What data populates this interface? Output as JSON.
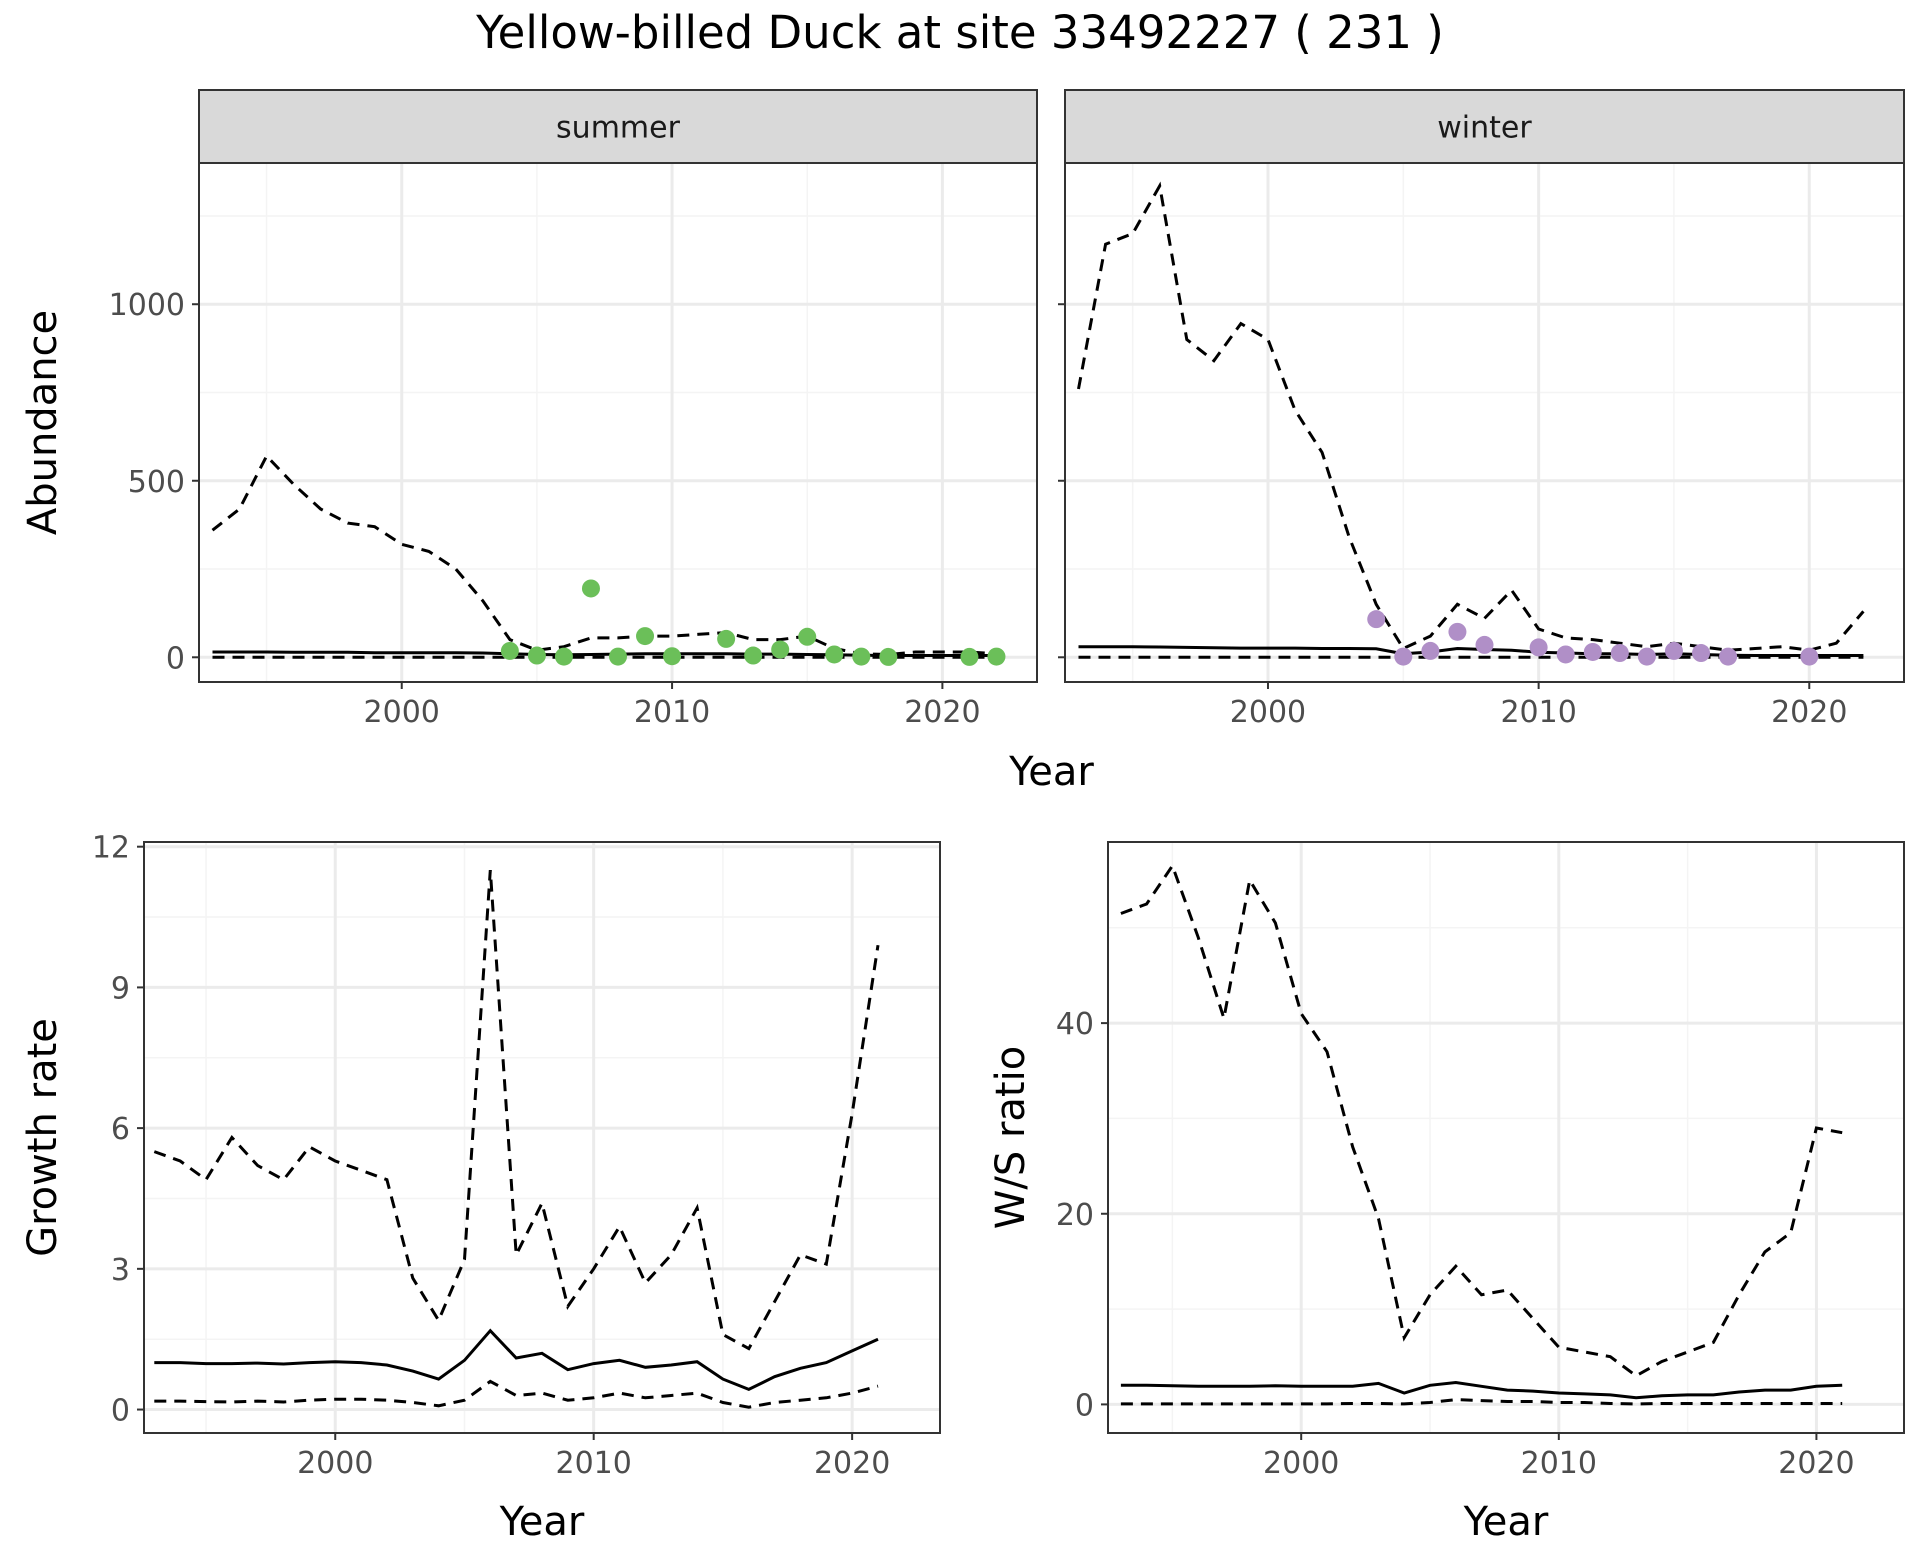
{
  "title": "Yellow-billed Duck at site 33492227 ( 231 )",
  "colors": {
    "summer_points": "#6bbf59",
    "winter_points": "#b08fc7",
    "line": "#000000",
    "grid_major": "#ebebeb",
    "grid_minor": "#f4f4f4",
    "strip_bg": "#d9d9d9",
    "panel_border": "#333333"
  },
  "chart_data": [
    {
      "type": "line",
      "facet": "summer",
      "xlabel": "Year",
      "ylabel": "Abundance",
      "xlim": [
        1992.5,
        2023.5
      ],
      "ylim": [
        -70,
        1400
      ],
      "xticks": [
        2000,
        2010,
        2020
      ],
      "yticks": [
        0,
        500,
        1000
      ],
      "grid": true,
      "years": [
        1993,
        1994,
        1995,
        1996,
        1997,
        1998,
        1999,
        2000,
        2001,
        2002,
        2003,
        2004,
        2005,
        2006,
        2007,
        2008,
        2009,
        2010,
        2011,
        2012,
        2013,
        2014,
        2015,
        2016,
        2017,
        2018,
        2019,
        2020,
        2021,
        2022
      ],
      "mean": [
        15,
        15,
        15,
        14,
        14,
        14,
        13,
        13,
        13,
        13,
        12,
        10,
        8,
        7,
        8,
        9,
        10,
        10,
        10,
        10,
        9,
        9,
        8,
        7,
        6,
        5,
        5,
        5,
        5,
        5
      ],
      "upper": [
        360,
        420,
        570,
        490,
        420,
        380,
        370,
        320,
        300,
        250,
        160,
        50,
        20,
        30,
        55,
        55,
        60,
        60,
        65,
        70,
        50,
        50,
        60,
        25,
        10,
        8,
        15,
        15,
        15,
        10
      ],
      "lower": [
        0,
        0,
        0,
        0,
        0,
        0,
        0,
        0,
        0,
        0,
        0,
        0,
        0,
        0,
        0,
        0,
        0,
        0,
        0,
        0,
        0,
        0,
        0,
        0,
        0,
        0,
        0,
        0,
        0,
        0
      ],
      "observed": [
        {
          "x": 2004,
          "y": 18
        },
        {
          "x": 2005,
          "y": 5
        },
        {
          "x": 2006,
          "y": 2
        },
        {
          "x": 2007,
          "y": 195
        },
        {
          "x": 2008,
          "y": 2
        },
        {
          "x": 2009,
          "y": 60
        },
        {
          "x": 2010,
          "y": 3
        },
        {
          "x": 2012,
          "y": 52
        },
        {
          "x": 2013,
          "y": 5
        },
        {
          "x": 2014,
          "y": 22
        },
        {
          "x": 2015,
          "y": 58
        },
        {
          "x": 2016,
          "y": 8
        },
        {
          "x": 2017,
          "y": 2
        },
        {
          "x": 2018,
          "y": 1
        },
        {
          "x": 2021,
          "y": 1
        },
        {
          "x": 2022,
          "y": 2
        }
      ]
    },
    {
      "type": "line",
      "facet": "winter",
      "xlabel": "Year",
      "ylabel": "Abundance",
      "xlim": [
        1992.5,
        2023.5
      ],
      "ylim": [
        -70,
        1400
      ],
      "xticks": [
        2000,
        2010,
        2020
      ],
      "yticks": [
        0,
        500,
        1000
      ],
      "grid": true,
      "years": [
        1993,
        1994,
        1995,
        1996,
        1997,
        1998,
        1999,
        2000,
        2001,
        2002,
        2003,
        2004,
        2005,
        2006,
        2007,
        2008,
        2009,
        2010,
        2011,
        2012,
        2013,
        2014,
        2015,
        2016,
        2017,
        2018,
        2019,
        2020,
        2021,
        2022
      ],
      "mean": [
        30,
        30,
        30,
        29,
        28,
        27,
        26,
        26,
        26,
        25,
        25,
        24,
        10,
        15,
        25,
        22,
        20,
        14,
        12,
        10,
        10,
        8,
        10,
        8,
        6,
        5,
        5,
        5,
        5,
        5
      ],
      "upper": [
        760,
        1170,
        1200,
        1335,
        900,
        840,
        945,
        900,
        700,
        580,
        340,
        150,
        25,
        60,
        150,
        110,
        190,
        80,
        55,
        50,
        40,
        30,
        40,
        30,
        20,
        25,
        30,
        20,
        40,
        130
      ],
      "lower": [
        0,
        0,
        0,
        0,
        0,
        0,
        0,
        0,
        0,
        0,
        0,
        0,
        0,
        0,
        0,
        0,
        0,
        0,
        0,
        0,
        0,
        0,
        0,
        0,
        0,
        0,
        0,
        0,
        0,
        0
      ],
      "observed": [
        {
          "x": 2004,
          "y": 108
        },
        {
          "x": 2005,
          "y": 2
        },
        {
          "x": 2006,
          "y": 18
        },
        {
          "x": 2007,
          "y": 72
        },
        {
          "x": 2008,
          "y": 35
        },
        {
          "x": 2010,
          "y": 28
        },
        {
          "x": 2011,
          "y": 8
        },
        {
          "x": 2012,
          "y": 15
        },
        {
          "x": 2013,
          "y": 12
        },
        {
          "x": 2014,
          "y": 2
        },
        {
          "x": 2015,
          "y": 18
        },
        {
          "x": 2016,
          "y": 12
        },
        {
          "x": 2017,
          "y": 2
        },
        {
          "x": 2020,
          "y": 2
        }
      ]
    },
    {
      "type": "line",
      "xlabel": "Year",
      "ylabel": "Growth rate",
      "xlim": [
        1992.6,
        2023.4
      ],
      "ylim": [
        -0.5,
        12.1
      ],
      "xticks": [
        2000,
        2010,
        2020
      ],
      "yticks": [
        0,
        3,
        6,
        9,
        12
      ],
      "grid": true,
      "years": [
        1993,
        1994,
        1995,
        1996,
        1997,
        1998,
        1999,
        2000,
        2001,
        2002,
        2003,
        2004,
        2005,
        2006,
        2007,
        2008,
        2009,
        2010,
        2011,
        2012,
        2013,
        2014,
        2015,
        2016,
        2017,
        2018,
        2019,
        2020,
        2021
      ],
      "mean": [
        1.0,
        1.0,
        0.98,
        0.98,
        0.99,
        0.97,
        1.0,
        1.02,
        1.0,
        0.95,
        0.82,
        0.65,
        1.05,
        1.68,
        1.1,
        1.2,
        0.85,
        0.98,
        1.05,
        0.9,
        0.95,
        1.02,
        0.65,
        0.43,
        0.7,
        0.88,
        1.0,
        1.25,
        1.5
      ],
      "upper": [
        5.5,
        5.3,
        4.9,
        5.8,
        5.2,
        4.9,
        5.6,
        5.3,
        5.1,
        4.9,
        2.8,
        1.9,
        3.2,
        11.5,
        3.3,
        4.4,
        2.2,
        3.0,
        3.9,
        2.7,
        3.3,
        4.3,
        1.6,
        1.3,
        2.3,
        3.3,
        3.1,
        6.3,
        9.9
      ],
      "lower": [
        0.18,
        0.18,
        0.17,
        0.16,
        0.18,
        0.16,
        0.2,
        0.22,
        0.22,
        0.2,
        0.15,
        0.08,
        0.2,
        0.6,
        0.3,
        0.35,
        0.2,
        0.25,
        0.35,
        0.25,
        0.3,
        0.35,
        0.15,
        0.05,
        0.15,
        0.2,
        0.25,
        0.35,
        0.5
      ]
    },
    {
      "type": "line",
      "xlabel": "Year",
      "ylabel": "W/S ratio",
      "xlim": [
        1992.5,
        2023.4
      ],
      "ylim": [
        -3,
        59
      ],
      "xticks": [
        2000,
        2010,
        2020
      ],
      "yticks": [
        0,
        20,
        40
      ],
      "grid": true,
      "years": [
        1993,
        1994,
        1995,
        1996,
        1997,
        1998,
        1999,
        2000,
        2001,
        2002,
        2003,
        2004,
        2005,
        2006,
        2007,
        2008,
        2009,
        2010,
        2011,
        2012,
        2013,
        2014,
        2015,
        2016,
        2017,
        2018,
        2019,
        2020,
        2021
      ],
      "mean": [
        2.0,
        2.0,
        1.95,
        1.9,
        1.9,
        1.9,
        1.95,
        1.9,
        1.9,
        1.9,
        2.2,
        1.2,
        2.0,
        2.3,
        1.9,
        1.5,
        1.4,
        1.2,
        1.1,
        1.0,
        0.7,
        0.9,
        1.0,
        1.0,
        1.3,
        1.5,
        1.5,
        1.9,
        2.0
      ],
      "upper": [
        51.5,
        52.5,
        56.5,
        49.0,
        40.5,
        55.0,
        50.5,
        41.0,
        37.0,
        27.0,
        19.5,
        7.0,
        11.5,
        14.5,
        11.5,
        12.0,
        9.0,
        6.0,
        5.5,
        5.0,
        3.0,
        4.5,
        5.5,
        6.5,
        11.5,
        16.0,
        18.0,
        29.0,
        28.5
      ],
      "lower": [
        0.05,
        0.05,
        0.05,
        0.05,
        0.05,
        0.05,
        0.05,
        0.05,
        0.05,
        0.1,
        0.1,
        0.05,
        0.2,
        0.5,
        0.4,
        0.3,
        0.3,
        0.2,
        0.2,
        0.1,
        0.05,
        0.1,
        0.1,
        0.1,
        0.1,
        0.1,
        0.1,
        0.1,
        0.1
      ]
    }
  ]
}
